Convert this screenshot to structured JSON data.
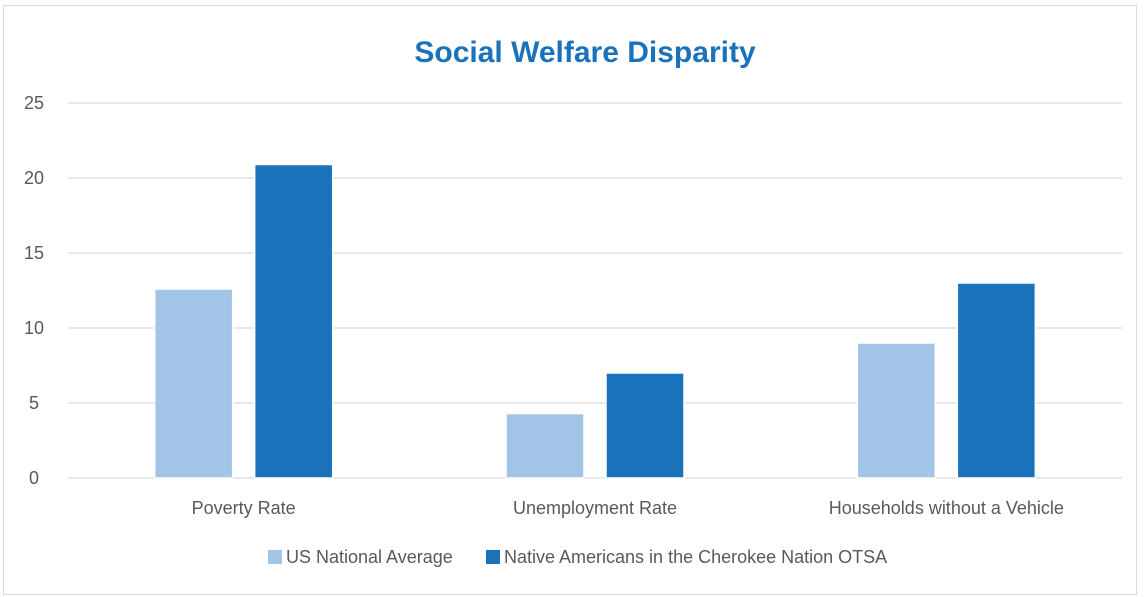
{
  "chart_data": {
    "type": "bar",
    "title": "Social Welfare Disparity",
    "xlabel": "",
    "ylabel": "",
    "categories": [
      "Poverty Rate",
      "Unemployment Rate",
      "Households without a Vehicle"
    ],
    "series": [
      {
        "name": "US National Average",
        "values": [
          12.6,
          4.3,
          9.0
        ],
        "color": "#a2c4e7"
      },
      {
        "name": "Native Americans in the Cherokee Nation OTSA",
        "values": [
          20.9,
          7.0,
          13.0
        ],
        "color": "#1a72bb"
      }
    ],
    "ylim": [
      0,
      25
    ],
    "yticks": [
      0,
      5,
      10,
      15,
      20,
      25
    ],
    "grid": true,
    "legend_position": "bottom",
    "gridline_color": "#d9d9d9",
    "axis_color": "#d9d9d9"
  }
}
